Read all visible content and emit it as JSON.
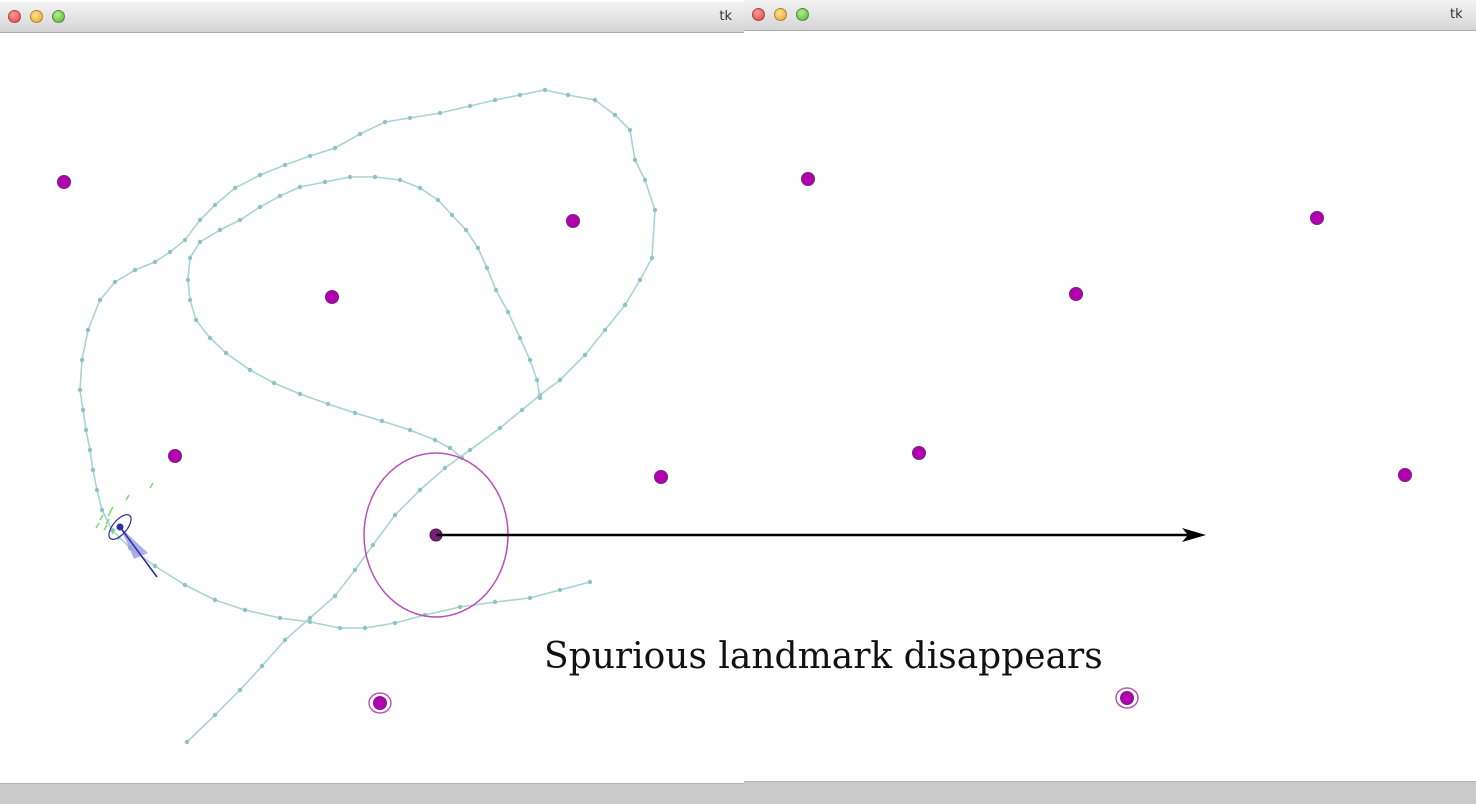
{
  "windows": {
    "left": {
      "title": "tk"
    },
    "right": {
      "title": "tk"
    }
  },
  "annotation": {
    "caption": "Spurious landmark disappears"
  },
  "colors": {
    "trajectory": "#a8d4d4",
    "trajectory_dot": "#8fc3c3",
    "landmark": "#b000b0",
    "landmark_outline": "#7a1f7a",
    "uncertainty_ellipse": "#b84fb8",
    "robot": "#2e2ea8",
    "robot_fov": "#9a9ae8",
    "particles": "#6dd96d",
    "arrow": "#000000"
  },
  "icons": [
    "close-light",
    "minimize-light",
    "zoom-light"
  ]
}
